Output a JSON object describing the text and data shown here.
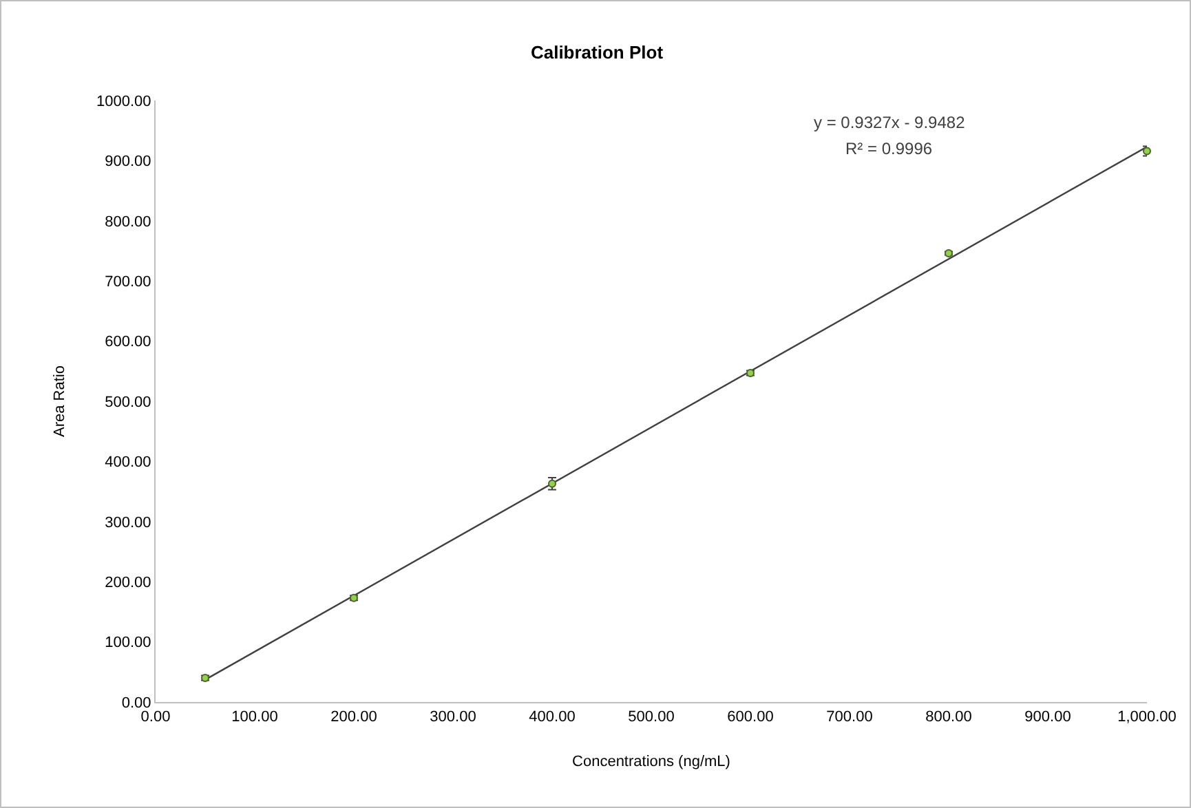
{
  "chart_data": {
    "type": "scatter",
    "title": "Calibration Plot",
    "xlabel": "Concentrations (ng/mL)",
    "ylabel": "Area Ratio",
    "x": [
      50,
      200,
      400,
      600,
      800,
      1000
    ],
    "series": [
      {
        "color": "#92d050",
        "marker": "circle",
        "values": [
          40,
          173,
          363,
          547,
          746,
          916
        ],
        "errors": [
          4,
          4,
          10,
          4,
          3,
          8
        ]
      },
      {
        "type": "line",
        "marker": "none",
        "color": "#404040",
        "x": [
          50,
          1000
        ],
        "values": [
          37,
          923
        ]
      }
    ],
    "grid": false,
    "xlim": [
      0,
      1000
    ],
    "ylim": [
      0,
      1000
    ],
    "xticks": [
      {
        "value": 0,
        "label": "0.00"
      },
      {
        "value": 100,
        "label": "100.00"
      },
      {
        "value": 200,
        "label": "200.00"
      },
      {
        "value": 300,
        "label": "300.00"
      },
      {
        "value": 400,
        "label": "400.00"
      },
      {
        "value": 500,
        "label": "500.00"
      },
      {
        "value": 600,
        "label": "600.00"
      },
      {
        "value": 700,
        "label": "700.00"
      },
      {
        "value": 800,
        "label": "800.00"
      },
      {
        "value": 900,
        "label": "900.00"
      },
      {
        "value": 1000,
        "label": "1,000.00"
      }
    ],
    "yticks": [
      {
        "value": 0,
        "label": "0.00"
      },
      {
        "value": 100,
        "label": "100.00"
      },
      {
        "value": 200,
        "label": "200.00"
      },
      {
        "value": 300,
        "label": "300.00"
      },
      {
        "value": 400,
        "label": "400.00"
      },
      {
        "value": 500,
        "label": "500.00"
      },
      {
        "value": 600,
        "label": "600.00"
      },
      {
        "value": 700,
        "label": "700.00"
      },
      {
        "value": 800,
        "label": "800.00"
      },
      {
        "value": 900,
        "label": "900.00"
      },
      {
        "value": 1000,
        "label": "1000.00"
      }
    ],
    "annotations": [
      "y = 0.9327x - 9.9482",
      "R² = 0.9996"
    ]
  }
}
